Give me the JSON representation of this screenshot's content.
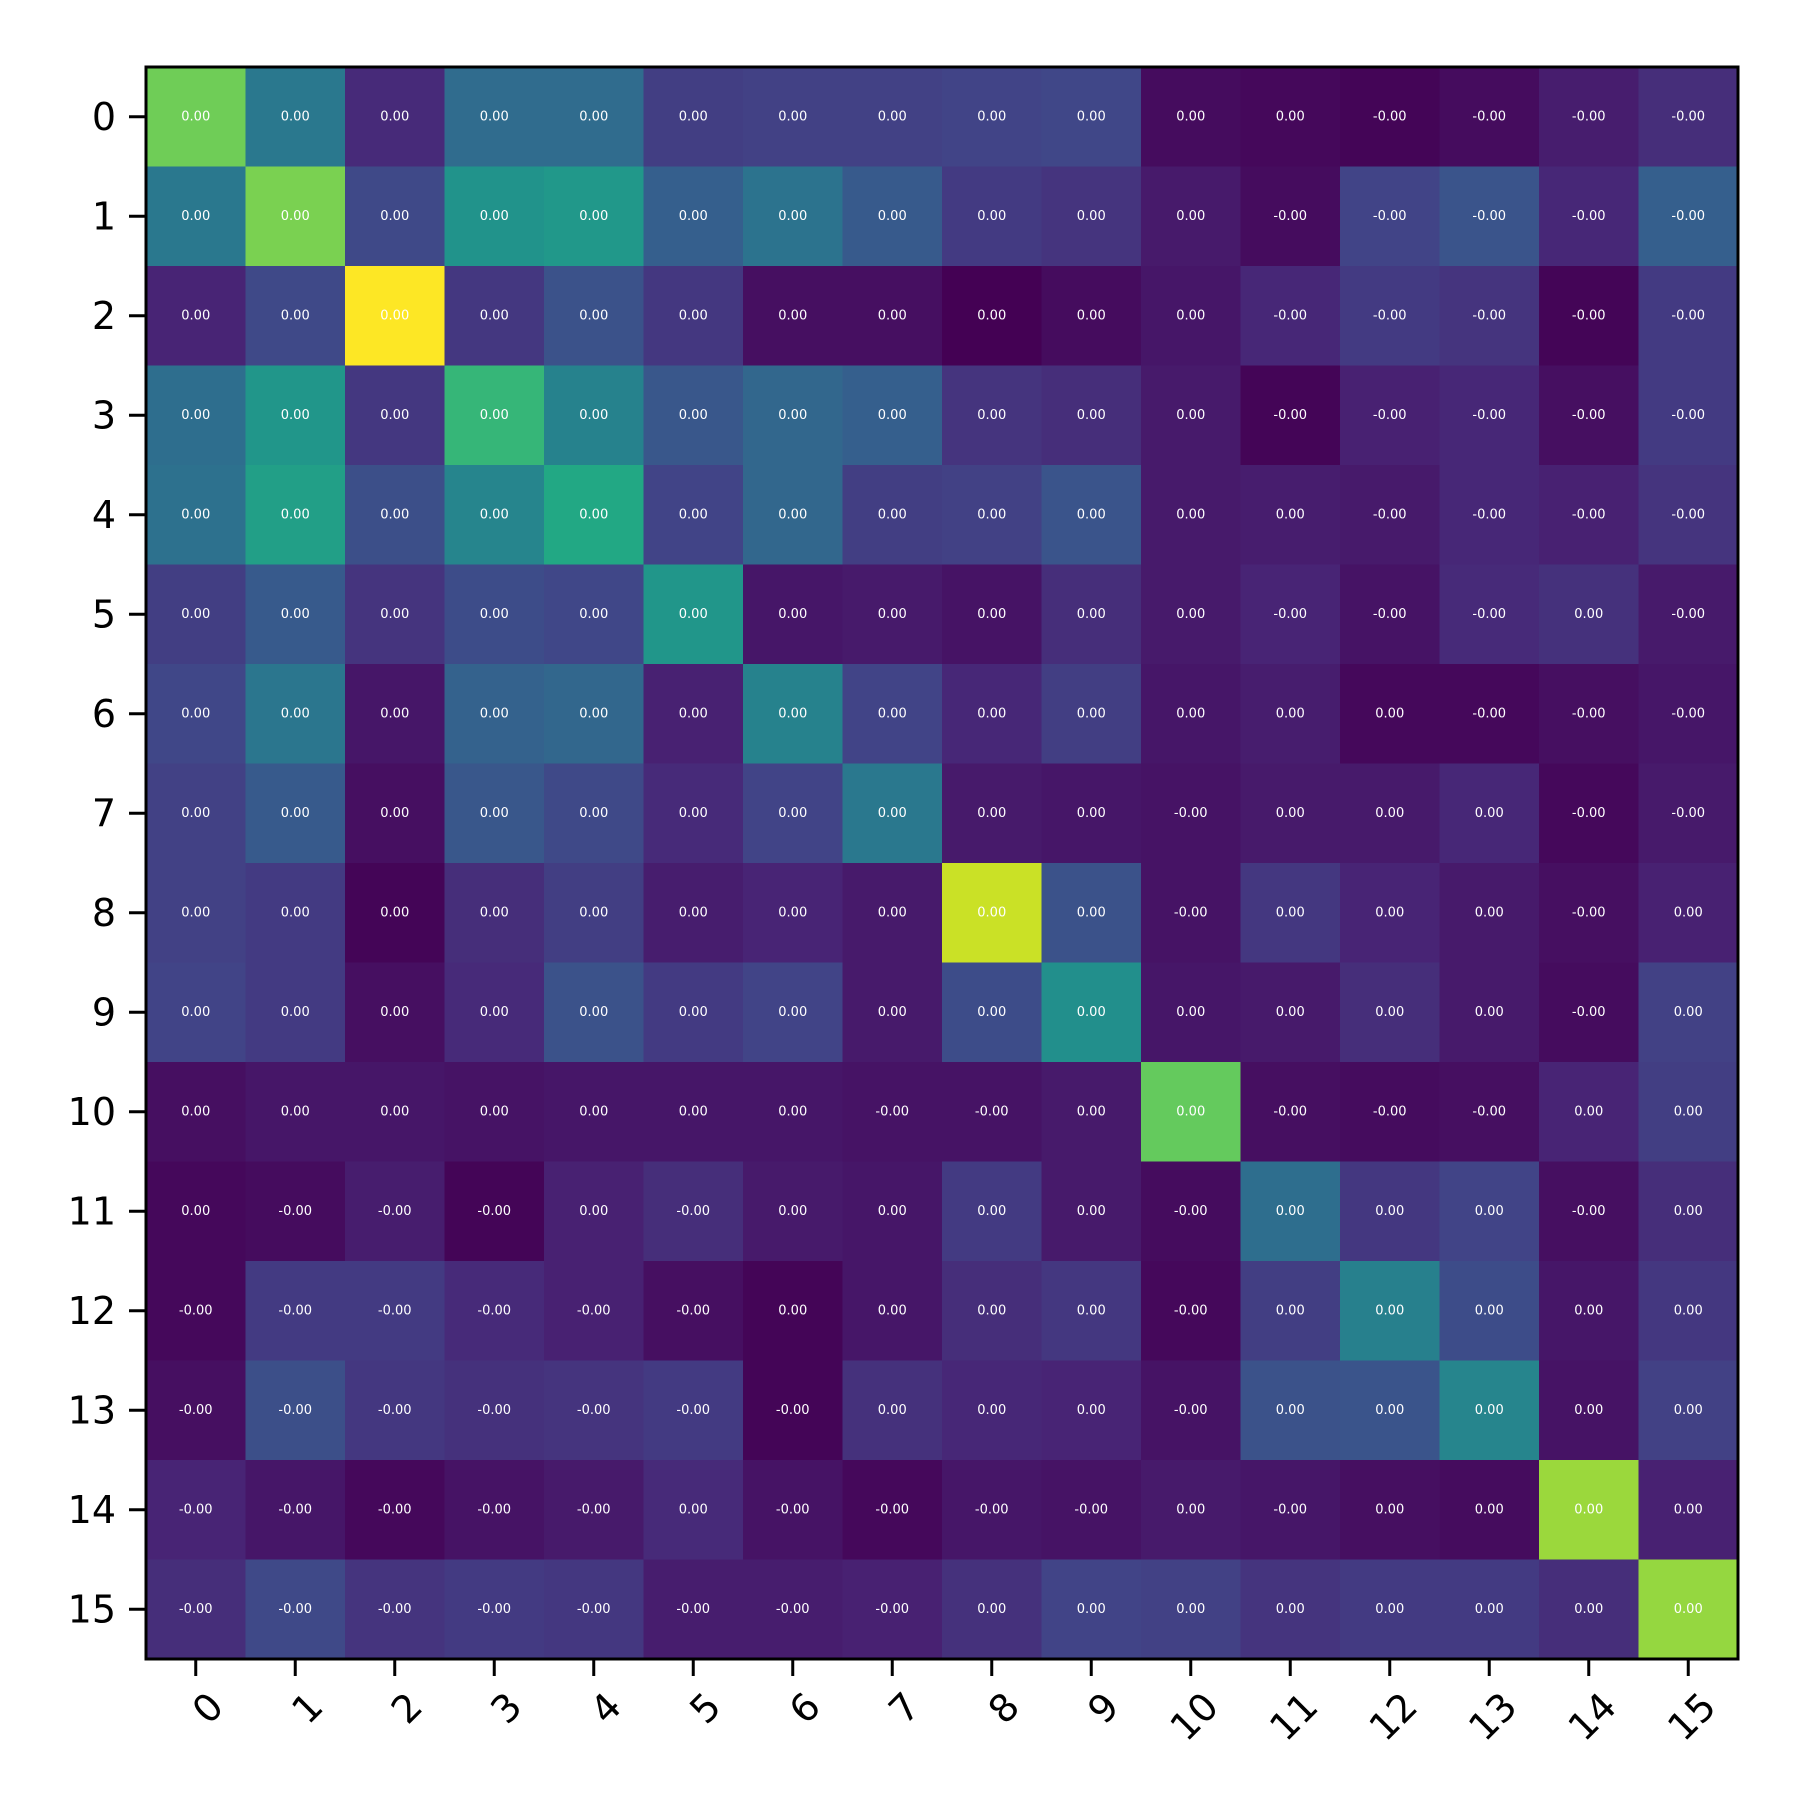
{
  "chart_data": {
    "type": "heatmap",
    "x_categories": [
      "0",
      "1",
      "2",
      "3",
      "4",
      "5",
      "6",
      "7",
      "8",
      "9",
      "10",
      "11",
      "12",
      "13",
      "14",
      "15"
    ],
    "y_categories": [
      "0",
      "1",
      "2",
      "3",
      "4",
      "5",
      "6",
      "7",
      "8",
      "9",
      "10",
      "11",
      "12",
      "13",
      "14",
      "15"
    ],
    "x_tick_rotation": -45,
    "colormap": "viridis",
    "color_range": [
      0,
      1
    ],
    "grid": false,
    "colorbar": false,
    "values": [
      [
        0.78,
        0.4,
        0.12,
        0.35,
        0.35,
        0.18,
        0.19,
        0.19,
        0.2,
        0.21,
        0.03,
        0.02,
        0.01,
        0.03,
        0.08,
        0.13
      ],
      [
        0.4,
        0.8,
        0.22,
        0.51,
        0.53,
        0.3,
        0.38,
        0.28,
        0.17,
        0.15,
        0.07,
        0.03,
        0.2,
        0.26,
        0.11,
        0.3
      ],
      [
        0.1,
        0.22,
        1.0,
        0.16,
        0.25,
        0.16,
        0.04,
        0.04,
        0.0,
        0.03,
        0.06,
        0.11,
        0.17,
        0.15,
        0.01,
        0.17
      ],
      [
        0.36,
        0.52,
        0.16,
        0.66,
        0.44,
        0.27,
        0.33,
        0.3,
        0.15,
        0.13,
        0.07,
        0.01,
        0.09,
        0.11,
        0.04,
        0.17
      ],
      [
        0.37,
        0.56,
        0.24,
        0.45,
        0.6,
        0.2,
        0.33,
        0.18,
        0.19,
        0.26,
        0.07,
        0.08,
        0.07,
        0.11,
        0.09,
        0.15
      ],
      [
        0.18,
        0.28,
        0.15,
        0.23,
        0.21,
        0.52,
        0.06,
        0.07,
        0.05,
        0.13,
        0.07,
        0.1,
        0.05,
        0.12,
        0.14,
        0.07
      ],
      [
        0.21,
        0.39,
        0.06,
        0.31,
        0.33,
        0.09,
        0.44,
        0.2,
        0.11,
        0.18,
        0.06,
        0.08,
        0.02,
        0.02,
        0.04,
        0.06
      ],
      [
        0.19,
        0.28,
        0.04,
        0.27,
        0.22,
        0.12,
        0.2,
        0.4,
        0.07,
        0.06,
        0.05,
        0.07,
        0.07,
        0.11,
        0.02,
        0.07
      ],
      [
        0.19,
        0.17,
        0.01,
        0.13,
        0.18,
        0.08,
        0.1,
        0.07,
        0.92,
        0.25,
        0.05,
        0.16,
        0.1,
        0.07,
        0.04,
        0.09
      ],
      [
        0.2,
        0.17,
        0.04,
        0.12,
        0.25,
        0.17,
        0.2,
        0.07,
        0.23,
        0.49,
        0.06,
        0.07,
        0.13,
        0.07,
        0.03,
        0.19
      ],
      [
        0.04,
        0.06,
        0.06,
        0.05,
        0.06,
        0.06,
        0.06,
        0.05,
        0.05,
        0.07,
        0.76,
        0.04,
        0.03,
        0.04,
        0.1,
        0.18
      ],
      [
        0.02,
        0.03,
        0.08,
        0.01,
        0.09,
        0.13,
        0.07,
        0.06,
        0.17,
        0.07,
        0.03,
        0.36,
        0.16,
        0.2,
        0.04,
        0.13
      ],
      [
        0.02,
        0.17,
        0.17,
        0.12,
        0.09,
        0.04,
        0.01,
        0.06,
        0.13,
        0.16,
        0.02,
        0.18,
        0.43,
        0.23,
        0.06,
        0.16
      ],
      [
        0.04,
        0.24,
        0.16,
        0.14,
        0.15,
        0.17,
        0.01,
        0.14,
        0.11,
        0.1,
        0.05,
        0.25,
        0.26,
        0.45,
        0.05,
        0.19
      ],
      [
        0.1,
        0.06,
        0.02,
        0.05,
        0.07,
        0.12,
        0.05,
        0.02,
        0.06,
        0.05,
        0.07,
        0.06,
        0.04,
        0.03,
        0.85,
        0.09
      ],
      [
        0.13,
        0.22,
        0.15,
        0.17,
        0.16,
        0.08,
        0.08,
        0.09,
        0.14,
        0.2,
        0.19,
        0.15,
        0.17,
        0.17,
        0.13,
        0.84
      ]
    ],
    "labels": [
      [
        "0.00",
        "0.00",
        "0.00",
        "0.00",
        "0.00",
        "0.00",
        "0.00",
        "0.00",
        "0.00",
        "0.00",
        "0.00",
        "0.00",
        "-0.00",
        "-0.00",
        "-0.00",
        "-0.00"
      ],
      [
        "0.00",
        "0.00",
        "0.00",
        "0.00",
        "0.00",
        "0.00",
        "0.00",
        "0.00",
        "0.00",
        "0.00",
        "0.00",
        "-0.00",
        "-0.00",
        "-0.00",
        "-0.00",
        "-0.00"
      ],
      [
        "0.00",
        "0.00",
        "0.00",
        "0.00",
        "0.00",
        "0.00",
        "0.00",
        "0.00",
        "0.00",
        "0.00",
        "0.00",
        "-0.00",
        "-0.00",
        "-0.00",
        "-0.00",
        "-0.00"
      ],
      [
        "0.00",
        "0.00",
        "0.00",
        "0.00",
        "0.00",
        "0.00",
        "0.00",
        "0.00",
        "0.00",
        "0.00",
        "0.00",
        "-0.00",
        "-0.00",
        "-0.00",
        "-0.00",
        "-0.00"
      ],
      [
        "0.00",
        "0.00",
        "0.00",
        "0.00",
        "0.00",
        "0.00",
        "0.00",
        "0.00",
        "0.00",
        "0.00",
        "0.00",
        "0.00",
        "-0.00",
        "-0.00",
        "-0.00",
        "-0.00"
      ],
      [
        "0.00",
        "0.00",
        "0.00",
        "0.00",
        "0.00",
        "0.00",
        "0.00",
        "0.00",
        "0.00",
        "0.00",
        "0.00",
        "-0.00",
        "-0.00",
        "-0.00",
        "0.00",
        "-0.00"
      ],
      [
        "0.00",
        "0.00",
        "0.00",
        "0.00",
        "0.00",
        "0.00",
        "0.00",
        "0.00",
        "0.00",
        "0.00",
        "0.00",
        "0.00",
        "0.00",
        "-0.00",
        "-0.00",
        "-0.00"
      ],
      [
        "0.00",
        "0.00",
        "0.00",
        "0.00",
        "0.00",
        "0.00",
        "0.00",
        "0.00",
        "0.00",
        "0.00",
        "-0.00",
        "0.00",
        "0.00",
        "0.00",
        "-0.00",
        "-0.00"
      ],
      [
        "0.00",
        "0.00",
        "0.00",
        "0.00",
        "0.00",
        "0.00",
        "0.00",
        "0.00",
        "0.00",
        "0.00",
        "-0.00",
        "0.00",
        "0.00",
        "0.00",
        "-0.00",
        "0.00"
      ],
      [
        "0.00",
        "0.00",
        "0.00",
        "0.00",
        "0.00",
        "0.00",
        "0.00",
        "0.00",
        "0.00",
        "0.00",
        "0.00",
        "0.00",
        "0.00",
        "0.00",
        "-0.00",
        "0.00"
      ],
      [
        "0.00",
        "0.00",
        "0.00",
        "0.00",
        "0.00",
        "0.00",
        "0.00",
        "-0.00",
        "-0.00",
        "0.00",
        "0.00",
        "-0.00",
        "-0.00",
        "-0.00",
        "0.00",
        "0.00"
      ],
      [
        "0.00",
        "-0.00",
        "-0.00",
        "-0.00",
        "0.00",
        "-0.00",
        "0.00",
        "0.00",
        "0.00",
        "0.00",
        "-0.00",
        "0.00",
        "0.00",
        "0.00",
        "-0.00",
        "0.00"
      ],
      [
        "-0.00",
        "-0.00",
        "-0.00",
        "-0.00",
        "-0.00",
        "-0.00",
        "0.00",
        "0.00",
        "0.00",
        "0.00",
        "-0.00",
        "0.00",
        "0.00",
        "0.00",
        "0.00",
        "0.00"
      ],
      [
        "-0.00",
        "-0.00",
        "-0.00",
        "-0.00",
        "-0.00",
        "-0.00",
        "-0.00",
        "0.00",
        "0.00",
        "0.00",
        "-0.00",
        "0.00",
        "0.00",
        "0.00",
        "0.00",
        "0.00"
      ],
      [
        "-0.00",
        "-0.00",
        "-0.00",
        "-0.00",
        "-0.00",
        "0.00",
        "-0.00",
        "-0.00",
        "-0.00",
        "-0.00",
        "0.00",
        "-0.00",
        "0.00",
        "0.00",
        "0.00",
        "0.00"
      ],
      [
        "-0.00",
        "-0.00",
        "-0.00",
        "-0.00",
        "-0.00",
        "-0.00",
        "-0.00",
        "-0.00",
        "0.00",
        "0.00",
        "0.00",
        "0.00",
        "0.00",
        "0.00",
        "0.00",
        "0.00"
      ]
    ]
  }
}
